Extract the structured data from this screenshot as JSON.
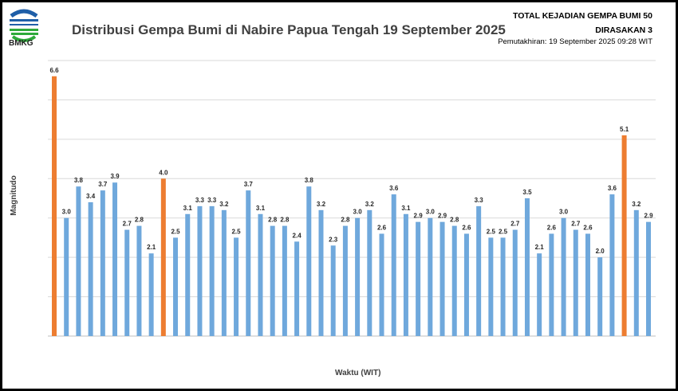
{
  "header": {
    "title": "Distribusi Gempa Bumi di Nabire Papua Tengah 19  September 2025",
    "total": "TOTAL KEJADIAN GEMPA BUMI 50",
    "felt": "DIRASAKAN 3",
    "updated": "Pemutakhiran: 19 September 2025 09:28 WIT",
    "logo_text": "BMKG"
  },
  "chart_data": {
    "type": "bar",
    "title": "Distribusi Gempa Bumi di Nabire Papua Tengah 19  September 2025",
    "xlabel": "Waktu (WIT)",
    "ylabel": "Magnitudo",
    "ylim": [
      0,
      7
    ],
    "grid": true,
    "values": [
      6.6,
      3.0,
      3.8,
      3.4,
      3.7,
      3.9,
      2.7,
      2.8,
      2.1,
      4.0,
      2.5,
      3.1,
      3.3,
      3.3,
      3.2,
      2.5,
      3.7,
      3.1,
      2.8,
      2.8,
      2.4,
      3.8,
      3.2,
      2.3,
      2.8,
      3.0,
      3.2,
      2.6,
      3.6,
      3.1,
      2.9,
      3.0,
      2.9,
      2.8,
      2.6,
      3.3,
      2.5,
      2.5,
      2.7,
      3.5,
      2.1,
      2.6,
      3.0,
      2.7,
      2.6,
      2.0,
      3.6,
      5.1,
      3.2,
      2.9
    ],
    "felt_indices": [
      0,
      9,
      47
    ],
    "colors": {
      "normal": "#6fa8dc",
      "felt": "#ed7d31",
      "grid": "#d9d9d9"
    }
  }
}
